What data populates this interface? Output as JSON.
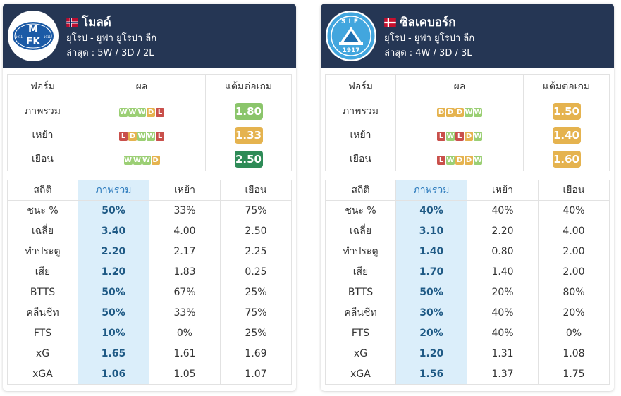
{
  "teams": [
    {
      "name": "โมลด์",
      "flag": "norway",
      "league": "ยุโรป - ยูฟ่า ยูโรปา ลีก",
      "recent": "ล่าสุด : 5W / 3D / 2L",
      "logo_text": "MFK",
      "logo_years": [
        "1911",
        "1911"
      ],
      "form_table": {
        "headers": [
          "ฟอร์ม",
          "ผล",
          "แต้มต่อเกม"
        ],
        "rows": [
          {
            "label": "ภาพรวม",
            "results": [
              "W",
              "W",
              "W",
              "D",
              "L"
            ],
            "ppg": "1.80",
            "ppg_color": "#8bc56b"
          },
          {
            "label": "เหย้า",
            "results": [
              "L",
              "D",
              "W",
              "W",
              "L"
            ],
            "ppg": "1.33",
            "ppg_color": "#e5b34f"
          },
          {
            "label": "เยือน",
            "results": [
              "W",
              "W",
              "W",
              "D"
            ],
            "ppg": "2.50",
            "ppg_color": "#2e8b57"
          }
        ]
      },
      "stats_table": {
        "headers": [
          "สถิติ",
          "ภาพรวม",
          "เหย้า",
          "เยือน"
        ],
        "rows": [
          [
            "ชนะ %",
            "50%",
            "33%",
            "75%"
          ],
          [
            "เฉลี่ย",
            "3.40",
            "4.00",
            "2.50"
          ],
          [
            "ทำประตู",
            "2.20",
            "2.17",
            "2.25"
          ],
          [
            "เสีย",
            "1.20",
            "1.83",
            "0.25"
          ],
          [
            "BTTS",
            "50%",
            "67%",
            "25%"
          ],
          [
            "คลีนชีท",
            "50%",
            "33%",
            "75%"
          ],
          [
            "FTS",
            "10%",
            "0%",
            "25%"
          ],
          [
            "xG",
            "1.65",
            "1.61",
            "1.69"
          ],
          [
            "xGA",
            "1.06",
            "1.05",
            "1.07"
          ]
        ]
      }
    },
    {
      "name": "ซิลเคบอร์ก",
      "flag": "denmark",
      "league": "ยุโรป - ยูฟ่า ยูโรปา ลีก",
      "recent": "ล่าสุด : 4W / 3D / 3L",
      "logo_text": "SIF",
      "logo_years": [
        "1917"
      ],
      "form_table": {
        "headers": [
          "ฟอร์ม",
          "ผล",
          "แต้มต่อเกม"
        ],
        "rows": [
          {
            "label": "ภาพรวม",
            "results": [
              "D",
              "D",
              "D",
              "W",
              "W"
            ],
            "ppg": "1.50",
            "ppg_color": "#e5b34f"
          },
          {
            "label": "เหย้า",
            "results": [
              "L",
              "W",
              "L",
              "D",
              "W"
            ],
            "ppg": "1.40",
            "ppg_color": "#e5b34f"
          },
          {
            "label": "เยือน",
            "results": [
              "L",
              "W",
              "D",
              "D",
              "W"
            ],
            "ppg": "1.60",
            "ppg_color": "#e5b34f"
          }
        ]
      },
      "stats_table": {
        "headers": [
          "สถิติ",
          "ภาพรวม",
          "เหย้า",
          "เยือน"
        ],
        "rows": [
          [
            "ชนะ %",
            "40%",
            "40%",
            "40%"
          ],
          [
            "เฉลี่ย",
            "3.10",
            "2.20",
            "4.00"
          ],
          [
            "ทำประตู",
            "1.40",
            "0.80",
            "2.00"
          ],
          [
            "เสีย",
            "1.70",
            "1.40",
            "2.00"
          ],
          [
            "BTTS",
            "50%",
            "20%",
            "80%"
          ],
          [
            "คลีนชีท",
            "30%",
            "40%",
            "20%"
          ],
          [
            "FTS",
            "20%",
            "40%",
            "0%"
          ],
          [
            "xG",
            "1.20",
            "1.31",
            "1.08"
          ],
          [
            "xGA",
            "1.56",
            "1.37",
            "1.75"
          ]
        ]
      }
    }
  ]
}
